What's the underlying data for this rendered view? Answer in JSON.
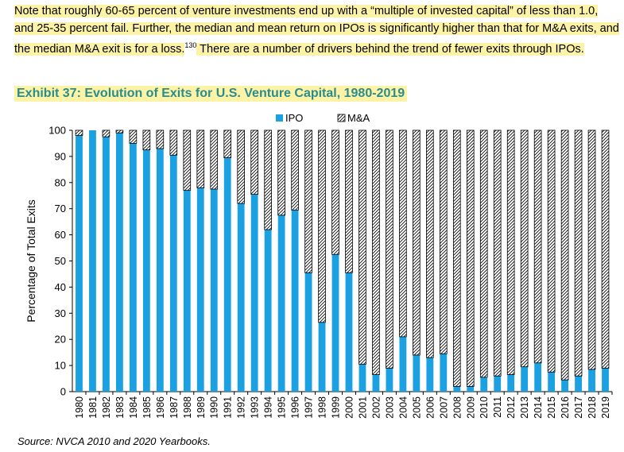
{
  "intro": {
    "text_a": "Note that roughly 60-65 percent of venture investments end up with a “multiple of invested capital” of less than 1.0, and 25-35 percent fail. Further, the median and mean return on IPOs is significantly higher than that for M&A exits, and the median M&A exit is for a loss.",
    "footnote": "130",
    "text_b": " There are a number of drivers behind the trend of fewer exits through IPOs."
  },
  "exhibit_title": "Exhibit 37: Evolution of Exits for U.S. Venture Capital, 1980-2019",
  "source": "Source: NVCA 2010 and 2020 Yearbooks.",
  "colors": {
    "ipo": "#1ba1e2",
    "highlight": "#fdf3a6",
    "title": "#2a8c8c"
  },
  "chart_data": {
    "type": "bar",
    "stacked": true,
    "title": "Evolution of Exits for U.S. Venture Capital, 1980-2019",
    "xlabel": "",
    "ylabel": "Percentage of Total Exits",
    "ylim": [
      0,
      100
    ],
    "yticks": [
      0,
      10,
      20,
      30,
      40,
      50,
      60,
      70,
      80,
      90,
      100
    ],
    "legend_position": "top-center",
    "categories": [
      "1980",
      "1981",
      "1982",
      "1983",
      "1984",
      "1985",
      "1986",
      "1987",
      "1988",
      "1989",
      "1990",
      "1991",
      "1992",
      "1993",
      "1994",
      "1995",
      "1996",
      "1997",
      "1998",
      "1999",
      "2000",
      "2001",
      "2002",
      "2003",
      "2004",
      "2005",
      "2006",
      "2007",
      "2008",
      "2009",
      "2010",
      "2011",
      "2012",
      "2013",
      "2014",
      "2015",
      "2016",
      "2017",
      "2018",
      "2019"
    ],
    "series": [
      {
        "name": "IPO",
        "values": [
          98,
          100,
          97.5,
          99,
          95,
          92.5,
          93,
          90.5,
          77,
          78,
          77.5,
          89.5,
          72,
          75.5,
          62,
          67.5,
          69.5,
          45.5,
          26.5,
          52.5,
          45.5,
          10.5,
          6.5,
          9,
          21,
          14,
          13,
          14.5,
          2,
          2,
          5.5,
          6,
          6.5,
          9.5,
          11,
          7.5,
          4.5,
          6,
          8.5,
          9
        ]
      },
      {
        "name": "M&A",
        "values": [
          2,
          0,
          2.5,
          1,
          5,
          7.5,
          7,
          9.5,
          23,
          22,
          22.5,
          10.5,
          28,
          24.5,
          38,
          32.5,
          30.5,
          54.5,
          73.5,
          47.5,
          54.5,
          89.5,
          93.5,
          91,
          79,
          86,
          87,
          85.5,
          98,
          98,
          94.5,
          94,
          93.5,
          90.5,
          89,
          92.5,
          95.5,
          94,
          91.5,
          91
        ]
      }
    ]
  }
}
